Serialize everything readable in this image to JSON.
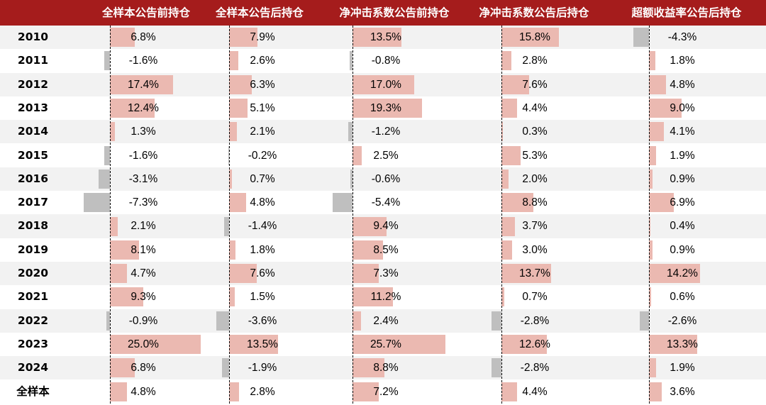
{
  "chart_data": {
    "type": "table",
    "columns": [
      "全样本公告前持仓",
      "全样本公告后持仓",
      "净冲击系数公告前持仓",
      "净冲击系数公告后持仓",
      "超额收益率公告后持仓"
    ],
    "rows": [
      {
        "label": "2010",
        "values": [
          6.8,
          7.9,
          13.5,
          15.8,
          -4.3
        ]
      },
      {
        "label": "2011",
        "values": [
          -1.6,
          2.6,
          -0.8,
          2.8,
          1.8
        ]
      },
      {
        "label": "2012",
        "values": [
          17.4,
          6.3,
          17.0,
          7.6,
          4.8
        ]
      },
      {
        "label": "2013",
        "values": [
          12.4,
          5.1,
          19.3,
          4.4,
          9.0
        ]
      },
      {
        "label": "2014",
        "values": [
          1.3,
          2.1,
          -1.2,
          0.3,
          4.1
        ]
      },
      {
        "label": "2015",
        "values": [
          -1.6,
          -0.2,
          2.5,
          5.3,
          1.9
        ]
      },
      {
        "label": "2016",
        "values": [
          -3.1,
          0.7,
          -0.6,
          2.0,
          0.9
        ]
      },
      {
        "label": "2017",
        "values": [
          -7.3,
          4.8,
          -5.4,
          8.8,
          6.9
        ]
      },
      {
        "label": "2018",
        "values": [
          2.1,
          -1.4,
          9.4,
          3.7,
          0.4
        ]
      },
      {
        "label": "2019",
        "values": [
          8.1,
          1.8,
          8.5,
          3.0,
          0.9
        ]
      },
      {
        "label": "2020",
        "values": [
          4.7,
          7.6,
          7.3,
          13.7,
          14.2
        ]
      },
      {
        "label": "2021",
        "values": [
          9.3,
          1.5,
          11.2,
          0.7,
          0.6
        ]
      },
      {
        "label": "2022",
        "values": [
          -0.9,
          -3.6,
          2.4,
          -2.8,
          -2.6
        ]
      },
      {
        "label": "2023",
        "values": [
          25.0,
          13.5,
          25.7,
          12.6,
          13.3
        ]
      },
      {
        "label": "2024",
        "values": [
          6.8,
          -1.9,
          8.8,
          -2.8,
          1.9
        ]
      },
      {
        "label": "全样本",
        "values": [
          4.8,
          2.8,
          7.2,
          4.4,
          3.6
        ]
      }
    ],
    "value_suffix": "%",
    "colors": {
      "header": "#a51c1c",
      "positive_bar": "#ebb9b1",
      "negative_bar": "#bfbfbf",
      "stripe": "#f2f2f2"
    }
  }
}
